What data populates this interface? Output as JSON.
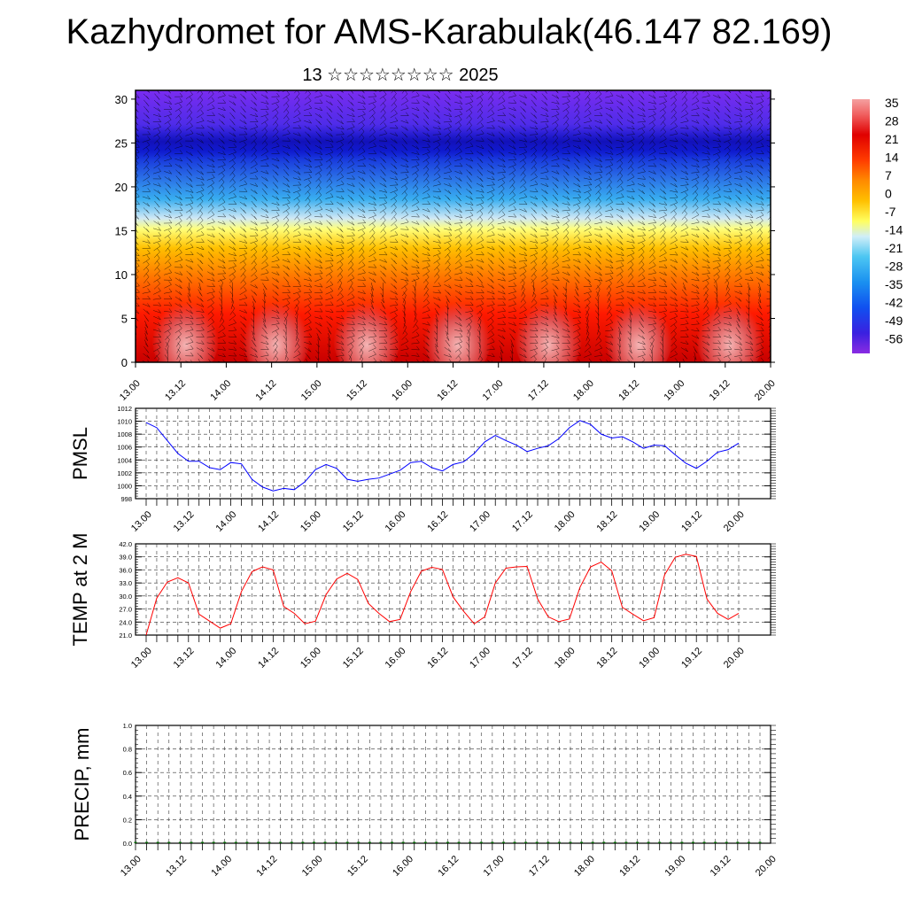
{
  "page": {
    "title": "Kazhydromet for AMS-Karabulak(46.147 82.169)",
    "subtitle": "13 ☆☆☆☆☆☆☆☆ 2025"
  },
  "time_ticks": [
    "13.00",
    "13.12",
    "14.00",
    "14.12",
    "15.00",
    "15.12",
    "16.00",
    "16.12",
    "17.00",
    "17.12",
    "18.00",
    "18.12",
    "19.00",
    "19.12",
    "20.00"
  ],
  "chart_data": [
    {
      "type": "heatmap",
      "title": "",
      "xlabel": "",
      "ylabel": "",
      "ylim": [
        0,
        31
      ],
      "yticks": [
        0,
        5,
        10,
        15,
        20,
        25,
        30
      ],
      "colorbar": {
        "labels": [
          "35",
          "28",
          "21",
          "14",
          "7",
          "0",
          "-7",
          "-14",
          "-21",
          "-28",
          "-35",
          "-42",
          "-49",
          "-56"
        ],
        "range": [
          -60,
          37
        ]
      },
      "profile_note_values": {
        "levels_km": [
          0,
          2,
          5,
          8,
          10,
          12,
          14,
          15.5,
          17,
          19,
          21,
          23,
          25,
          27,
          30
        ],
        "temperature_c": [
          32,
          26,
          22,
          18,
          14,
          8,
          0,
          -8,
          -16,
          -26,
          -36,
          -46,
          -54,
          -58,
          -60
        ]
      },
      "wind_barbs": true
    },
    {
      "type": "line",
      "ylabel": "PMSL",
      "ylim": [
        998,
        1012
      ],
      "yticks": [
        "998",
        "1000",
        "1002",
        "1004",
        "1006",
        "1008",
        "1010",
        "1012"
      ],
      "series": [
        {
          "color": "#0000ff",
          "values": [
            1009.8,
            1009.0,
            1007.0,
            1005.0,
            1003.8,
            1003.8,
            1002.8,
            1002.5,
            1003.6,
            1003.4,
            1001.0,
            999.8,
            999.2,
            999.6,
            999.4,
            1000.6,
            1002.5,
            1003.3,
            1002.7,
            1001.0,
            1000.7,
            1001.0,
            1001.2,
            1001.8,
            1002.4,
            1003.6,
            1003.8,
            1002.8,
            1002.3,
            1003.3,
            1003.7,
            1005.0,
            1006.8,
            1007.8,
            1007.0,
            1006.3,
            1005.3,
            1005.8,
            1006.2,
            1007.3,
            1009.0,
            1010.1,
            1009.5,
            1008.0,
            1007.4,
            1007.6,
            1006.8,
            1005.8,
            1006.3,
            1006.2,
            1004.8,
            1003.5,
            1002.7,
            1003.8,
            1005.2,
            1005.6,
            1006.6
          ]
        }
      ]
    },
    {
      "type": "line",
      "ylabel": "TEMP at 2 M",
      "ylim": [
        21,
        42
      ],
      "yticks": [
        "21.0",
        "24.0",
        "27.0",
        "30.0",
        "33.0",
        "36.0",
        "39.0",
        "42.0"
      ],
      "series": [
        {
          "color": "#ff0000",
          "values": [
            21.0,
            29.5,
            33.2,
            34.2,
            33.0,
            25.8,
            24.2,
            22.6,
            23.6,
            31.0,
            35.6,
            36.7,
            36.0,
            27.6,
            26.0,
            23.6,
            24.2,
            30.3,
            33.9,
            35.2,
            33.8,
            28.3,
            26.0,
            24.1,
            24.6,
            31.0,
            35.7,
            36.6,
            36.1,
            29.8,
            26.5,
            23.6,
            25.2,
            33.0,
            36.4,
            36.7,
            36.8,
            29.3,
            25.2,
            24.1,
            24.7,
            32.0,
            36.7,
            37.8,
            35.8,
            27.4,
            25.8,
            24.3,
            25.0,
            34.9,
            38.9,
            39.6,
            39.1,
            29.3,
            26.0,
            24.6,
            26.0
          ]
        }
      ]
    },
    {
      "type": "bar",
      "ylabel": "PRECIP, mm",
      "ylim": [
        0,
        1
      ],
      "yticks": [
        "0.0",
        "0.2",
        "0.4",
        "0.6",
        "0.8",
        "1.0"
      ],
      "series": [
        {
          "color": "#006400",
          "values": [
            0,
            0,
            0,
            0,
            0,
            0,
            0,
            0,
            0,
            0,
            0,
            0,
            0,
            0,
            0,
            0,
            0,
            0,
            0,
            0,
            0,
            0,
            0,
            0,
            0,
            0,
            0,
            0,
            0,
            0,
            0,
            0,
            0,
            0,
            0,
            0,
            0,
            0,
            0,
            0,
            0,
            0,
            0,
            0,
            0,
            0,
            0,
            0,
            0,
            0,
            0,
            0,
            0,
            0,
            0,
            0,
            0
          ]
        }
      ]
    }
  ]
}
